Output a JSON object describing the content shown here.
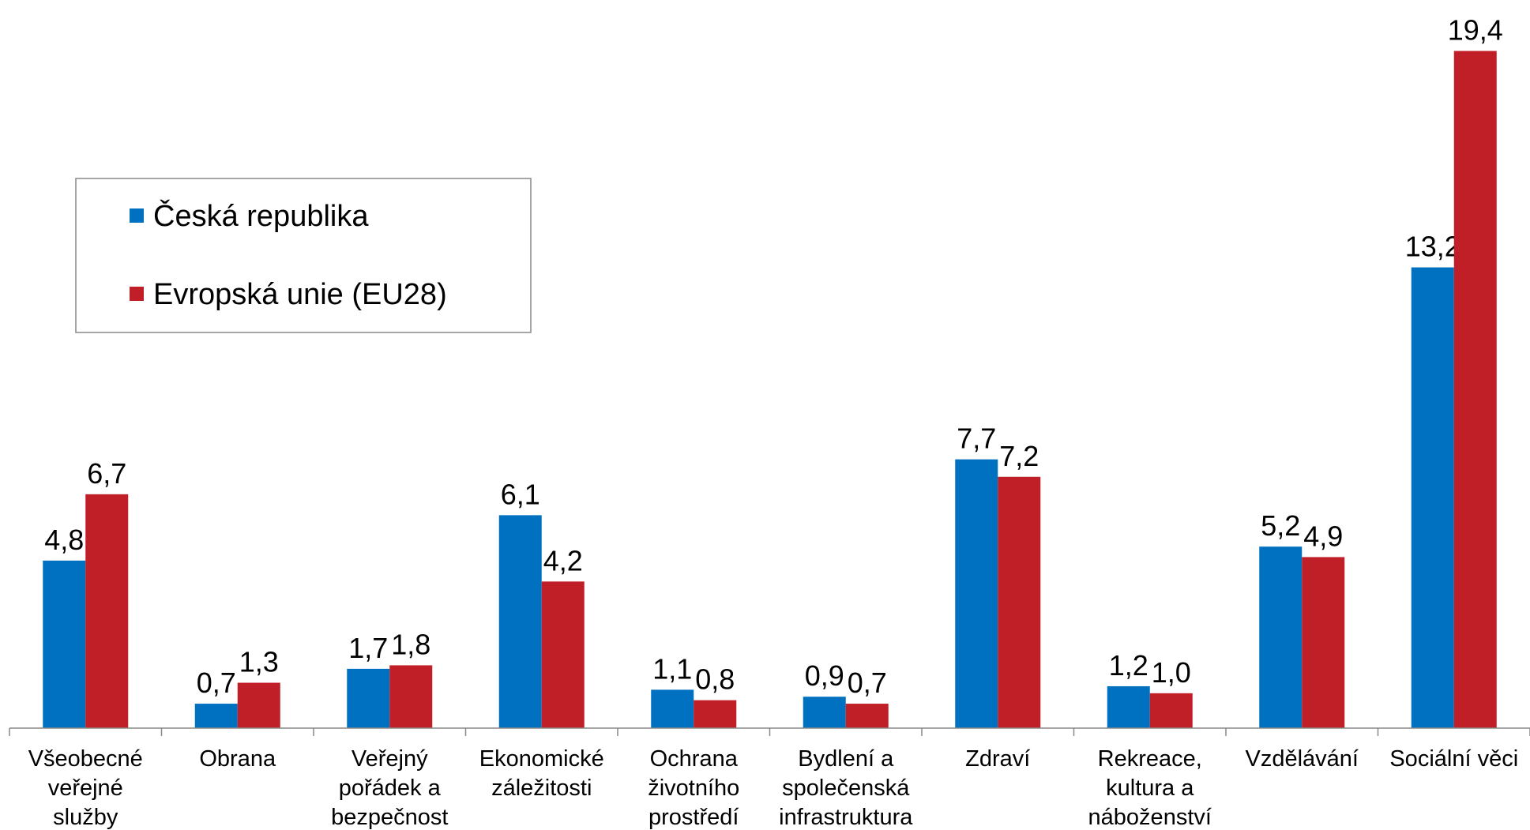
{
  "chart_data": {
    "type": "bar",
    "categories": [
      "Všeobecné\nveřejné\nslužby",
      "Obrana",
      "Veřejný\npořádek a\nbezpečnost",
      "Ekonomické\nzáležitosti",
      "Ochrana\nživotního\nprostředí",
      "Bydlení a\nspolečenská\ninfrastruktura",
      "Zdraví",
      "Rekreace,\nkultura a\nnáboženství",
      "Vzdělávání",
      "Sociální věci"
    ],
    "series": [
      {
        "name": "Česká republika",
        "color": "#0070c0",
        "values": [
          4.8,
          0.7,
          1.7,
          6.1,
          1.1,
          0.9,
          7.7,
          1.2,
          5.2,
          13.2
        ],
        "value_labels": [
          "4,8",
          "0,7",
          "1,7",
          "6,1",
          "1,1",
          "0,9",
          "7,7",
          "1,2",
          "5,2",
          "13,2"
        ]
      },
      {
        "name": "Evropská unie (EU28)",
        "color": "#c01f28",
        "values": [
          6.7,
          1.3,
          1.8,
          4.2,
          0.8,
          0.7,
          7.2,
          1.0,
          4.9,
          19.4
        ],
        "value_labels": [
          "6,7",
          "1,3",
          "1,8",
          "4,2",
          "0,8",
          "0,7",
          "7,2",
          "1,0",
          "4,9",
          "19,4"
        ]
      }
    ],
    "ylim": [
      0,
      20
    ],
    "legend": "upper left"
  }
}
